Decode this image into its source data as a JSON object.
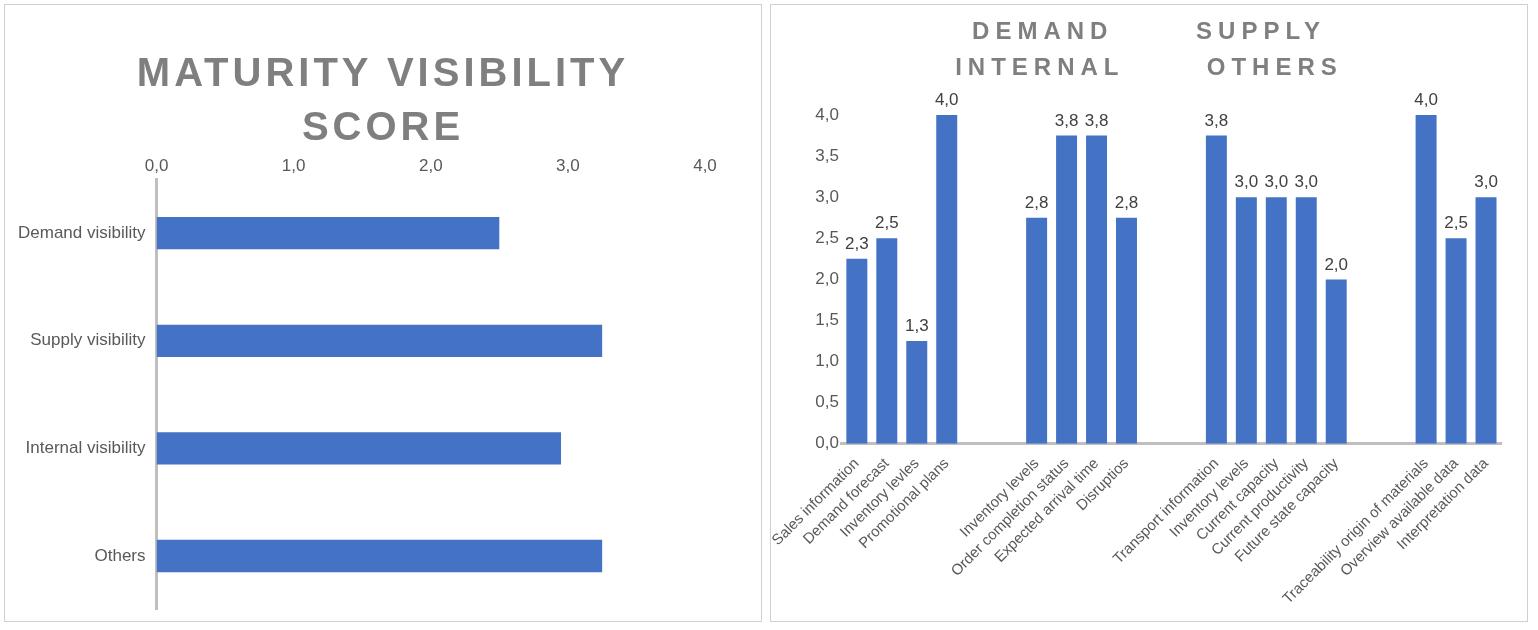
{
  "chart_data": [
    {
      "type": "bar",
      "title": "MATURITY VISIBILITY SCORE",
      "orientation": "horizontal",
      "categories": [
        "Demand visibility",
        "Supply visibility",
        "Internal visibility",
        "Others"
      ],
      "values": [
        2.5,
        3.25,
        2.95,
        3.25
      ],
      "color": "#4472c4",
      "xlim": [
        0,
        4
      ],
      "xticks": [
        {
          "value": 0,
          "label": "0,0"
        },
        {
          "value": 1,
          "label": "1,0"
        },
        {
          "value": 2,
          "label": "2,0"
        },
        {
          "value": 3,
          "label": "3,0"
        },
        {
          "value": 4,
          "label": "4,0"
        }
      ],
      "grid": false
    },
    {
      "type": "bar",
      "title": "DEMAND SUPPLY INTERNAL OTHERS",
      "categories": [
        "Sales information",
        "Demand forecast",
        "Inventory levles",
        "Promotional plans",
        null,
        null,
        "Inventory levels",
        "Order completion status",
        "Expected arrival time",
        "Disruptios",
        null,
        null,
        "Transport information",
        "Inventory levels",
        "Current capacity",
        "Current productivity",
        "Future state capacity",
        null,
        null,
        "Traceability origin of materials",
        "Overview available data",
        "Interpretation data"
      ],
      "values": [
        2.25,
        2.5,
        1.25,
        4.0,
        null,
        null,
        2.75,
        3.75,
        3.75,
        2.75,
        null,
        null,
        3.75,
        3.0,
        3.0,
        3.0,
        2.0,
        null,
        null,
        4.0,
        2.5,
        3.0
      ],
      "value_labels": [
        "2,3",
        "2,5",
        "1,3",
        "4,0",
        null,
        null,
        "2,8",
        "3,8",
        "3,8",
        "2,8",
        null,
        null,
        "3,8",
        "3,0",
        "3,0",
        "3,0",
        "2,0",
        null,
        null,
        "4,0",
        "2,5",
        "3,0"
      ],
      "color": "#4472c4",
      "ylim": [
        0,
        4
      ],
      "yticks": [
        {
          "value": 0,
          "label": "0,0"
        },
        {
          "value": 0.5,
          "label": "0,5"
        },
        {
          "value": 1,
          "label": "1,0"
        },
        {
          "value": 1.5,
          "label": "1,5"
        },
        {
          "value": 2,
          "label": "2,0"
        },
        {
          "value": 2.5,
          "label": "2,5"
        },
        {
          "value": 3,
          "label": "3,0"
        },
        {
          "value": 3.5,
          "label": "3,5"
        },
        {
          "value": 4,
          "label": "4,0"
        }
      ],
      "grid": false
    }
  ]
}
